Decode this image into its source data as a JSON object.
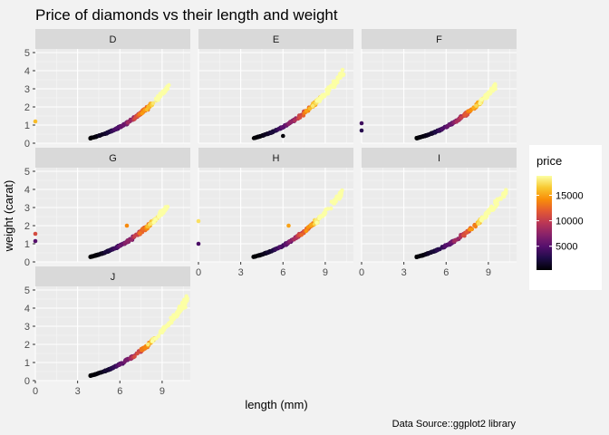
{
  "chart_data": {
    "type": "scatter",
    "title": "Price of diamonds vs their length and weight",
    "xlabel": "length (mm)",
    "ylabel": "weight (carat)",
    "caption": "Data Source::ggplot2 library",
    "xlim": [
      0,
      11
    ],
    "ylim": [
      0,
      5.2
    ],
    "x_ticks": [
      0,
      3,
      6,
      9
    ],
    "y_ticks": [
      0,
      1,
      2,
      3,
      4,
      5
    ],
    "grid": true,
    "facet_by": "color",
    "legend": {
      "title": "price",
      "position": "right",
      "breaks": [
        5000,
        10000,
        15000
      ],
      "range": [
        326,
        18823
      ],
      "colors": [
        "#000004",
        "#1f0c48",
        "#550f6d",
        "#88226a",
        "#ba3655",
        "#e35933",
        "#f98e09",
        "#f8c931",
        "#fcffa4"
      ]
    },
    "facets": [
      {
        "label": "D",
        "outliers": [
          {
            "x": 0,
            "y": 1.2,
            "price": 16000
          }
        ],
        "x_max": 9.5,
        "y_max": 3.4
      },
      {
        "label": "E",
        "outliers": [
          {
            "x": 6.0,
            "y": 0.4,
            "price": 500
          }
        ],
        "x_max": 10.3,
        "y_max": 3.1
      },
      {
        "label": "F",
        "outliers": [
          {
            "x": 0,
            "y": 1.1,
            "price": 4000
          },
          {
            "x": 0,
            "y": 0.7,
            "price": 3000
          }
        ],
        "x_max": 9.5,
        "y_max": 3.0
      },
      {
        "label": "G",
        "outliers": [
          {
            "x": 0,
            "y": 1.55,
            "price": 11000
          },
          {
            "x": 0,
            "y": 1.15,
            "price": 5000
          },
          {
            "x": 6.5,
            "y": 2.0,
            "price": 14000
          }
        ],
        "x_max": 9.4,
        "y_max": 3.0
      },
      {
        "label": "H",
        "outliers": [
          {
            "x": 0,
            "y": 2.25,
            "price": 17500
          },
          {
            "x": 0,
            "y": 1.0,
            "price": 4500
          },
          {
            "x": 6.4,
            "y": 2.0,
            "price": 15000
          }
        ],
        "x_max": 10.2,
        "y_max": 4.2
      },
      {
        "label": "I",
        "outliers": [],
        "x_max": 10.3,
        "y_max": 4.1
      },
      {
        "label": "J",
        "outliers": [],
        "x_max": 10.8,
        "y_max": 5.0
      }
    ]
  }
}
